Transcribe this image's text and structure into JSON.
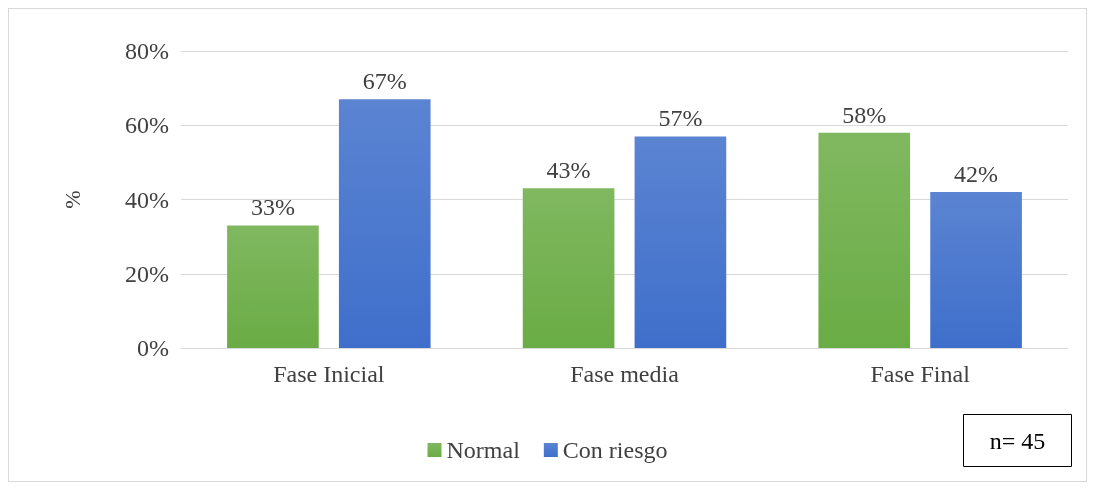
{
  "chart_data": {
    "type": "bar",
    "ylabel": "%",
    "categories": [
      "Fase Inicial",
      "Fase media",
      "Fase Final"
    ],
    "series": [
      {
        "name": "Normal",
        "color": "#6aac45",
        "values": [
          33,
          43,
          58
        ],
        "value_labels": [
          "33%",
          "43%",
          "58%"
        ]
      },
      {
        "name": "Con riesgo",
        "color": "#3f6fcb",
        "values": [
          67,
          57,
          42
        ],
        "value_labels": [
          "67%",
          "57%",
          "42%"
        ]
      }
    ],
    "ylim": [
      0,
      80
    ],
    "yticks": [
      {
        "value": 0,
        "label": "0%"
      },
      {
        "value": 20,
        "label": "20%"
      },
      {
        "value": 40,
        "label": "40%"
      },
      {
        "value": 60,
        "label": "60%"
      },
      {
        "value": 80,
        "label": "80%"
      }
    ],
    "grid": "y",
    "legend": "bottom",
    "annotations": [
      "n= 45"
    ]
  }
}
